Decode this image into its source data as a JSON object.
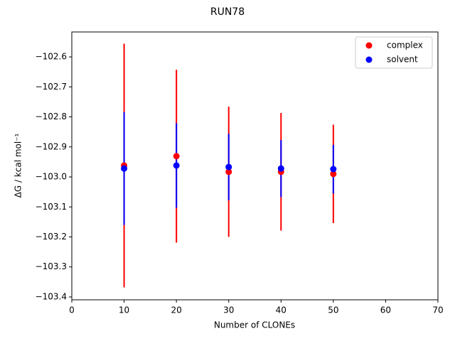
{
  "chart_data": {
    "type": "errorbar-scatter",
    "title": "RUN78",
    "xlabel": "Number of CLONEs",
    "ylabel": "ΔG / kcal mol⁻¹",
    "xlim": [
      0,
      70
    ],
    "ylim": [
      -103.4095,
      -102.517
    ],
    "xticks": [
      0,
      10,
      20,
      30,
      40,
      50,
      60,
      70
    ],
    "yticks": [
      {
        "value": -102.6,
        "label": "−102.6"
      },
      {
        "value": -102.7,
        "label": "−102.7"
      },
      {
        "value": -102.8,
        "label": "−102.8"
      },
      {
        "value": -102.9,
        "label": "−102.9"
      },
      {
        "value": -103.0,
        "label": "−103.0"
      },
      {
        "value": -103.1,
        "label": "−103.1"
      },
      {
        "value": -103.2,
        "label": "−103.2"
      },
      {
        "value": -103.3,
        "label": "−103.3"
      },
      {
        "value": -103.4,
        "label": "−103.4"
      }
    ],
    "legend": "upper right",
    "series": [
      {
        "name": "complex",
        "color": "#ff0000",
        "x": [
          10,
          20,
          30,
          40,
          50
        ],
        "values": [
          -102.962,
          -102.931,
          -102.983,
          -102.983,
          -102.99
        ],
        "errors": [
          0.406,
          0.288,
          0.217,
          0.196,
          0.164
        ]
      },
      {
        "name": "solvent",
        "color": "#0000ff",
        "x": [
          10,
          20,
          30,
          40,
          50
        ],
        "values": [
          -102.972,
          -102.962,
          -102.967,
          -102.972,
          -102.974
        ],
        "errors": [
          0.188,
          0.141,
          0.111,
          0.095,
          0.081
        ]
      }
    ]
  }
}
